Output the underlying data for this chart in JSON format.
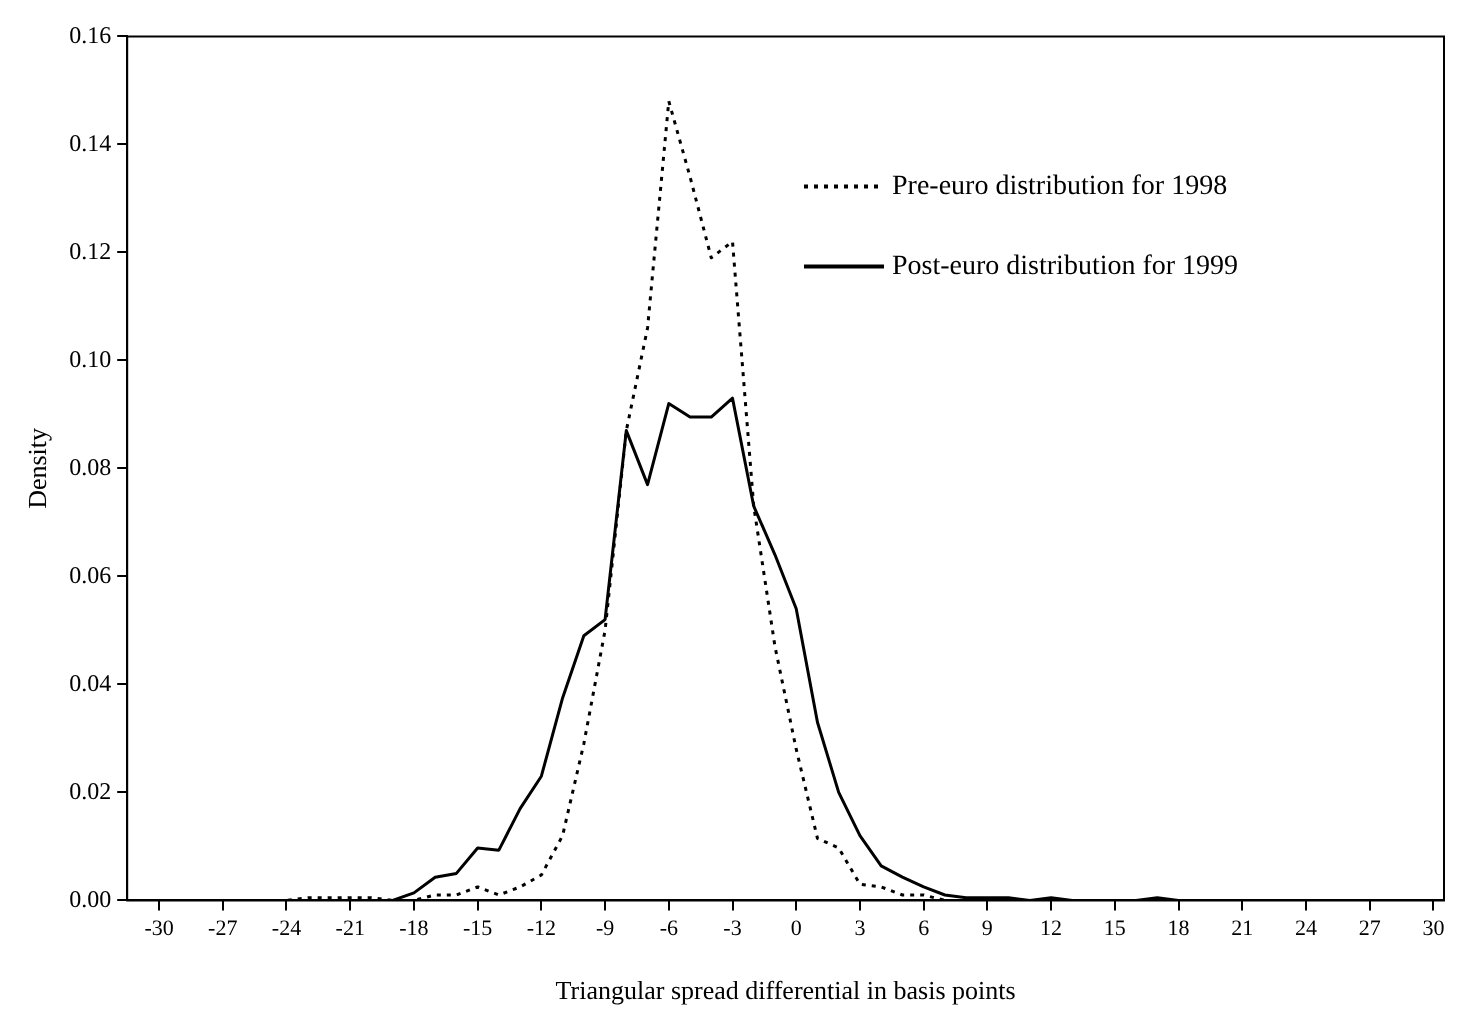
{
  "chart_data": {
    "type": "line",
    "xlabel": "Triangular spread differential in basis points",
    "ylabel": "Density",
    "x": [
      -31,
      -30,
      -29,
      -28,
      -27,
      -26,
      -25,
      -24,
      -23,
      -22,
      -21,
      -20,
      -19,
      -18,
      -17,
      -16,
      -15,
      -14,
      -13,
      -12,
      -11,
      -10,
      -9,
      -8,
      -7,
      -6,
      -5,
      -4,
      -3,
      -2,
      -1,
      0,
      1,
      2,
      3,
      4,
      5,
      6,
      7,
      8,
      9,
      10,
      11,
      12,
      13,
      14,
      15,
      16,
      17,
      18,
      19,
      20,
      21,
      22,
      23,
      24,
      25,
      26,
      27,
      28,
      29,
      30
    ],
    "series": [
      {
        "name": "Pre-euro distribution for 1998",
        "color": "#000000",
        "line_style": "dotted",
        "values": [
          0,
          0,
          0,
          0,
          0,
          0,
          0,
          0,
          0.0005,
          0.0005,
          0.0005,
          0.0005,
          0,
          0,
          0.001,
          0.001,
          0.0025,
          0.001,
          0.0025,
          0.0047,
          0.012,
          0.029,
          0.05,
          0.087,
          0.106,
          0.148,
          0.134,
          0.119,
          0.122,
          0.073,
          0.047,
          0.028,
          0.0115,
          0.0097,
          0.003,
          0.0025,
          0.001,
          0.001,
          0,
          0,
          0,
          0,
          0,
          0,
          0,
          0,
          0,
          0,
          0,
          0,
          0,
          0,
          0,
          0,
          0,
          0,
          0,
          0,
          0,
          0,
          0,
          0
        ]
      },
      {
        "name": "Post-euro distribution for 1999",
        "color": "#000000",
        "line_style": "solid",
        "values": [
          0,
          0,
          0,
          0,
          0,
          0,
          0,
          0,
          0,
          0,
          0,
          0,
          0,
          0.0014,
          0.0043,
          0.005,
          0.0097,
          0.0093,
          0.017,
          0.023,
          0.0375,
          0.049,
          0.052,
          0.087,
          0.077,
          0.092,
          0.0895,
          0.0895,
          0.093,
          0.073,
          0.064,
          0.054,
          0.033,
          0.02,
          0.012,
          0.0064,
          0.0043,
          0.0025,
          0.001,
          0.0005,
          0.0005,
          0.0005,
          0,
          0.0005,
          0,
          0,
          0,
          0,
          0.0005,
          0,
          0,
          0,
          0,
          0,
          0,
          0,
          0,
          0,
          0,
          0,
          0,
          0
        ]
      }
    ],
    "xlim": [
      -31.5,
      30.5
    ],
    "xticks": [
      -30,
      -27,
      -24,
      -21,
      -18,
      -15,
      -12,
      -9,
      -6,
      -3,
      0,
      3,
      6,
      9,
      12,
      15,
      18,
      21,
      24,
      27,
      30
    ],
    "ylim": [
      0,
      0.16
    ],
    "yticks": [
      {
        "value": 0,
        "label": "0.00"
      },
      {
        "value": 0.02,
        "label": "0.02"
      },
      {
        "value": 0.04,
        "label": "0.04"
      },
      {
        "value": 0.06,
        "label": "0.06"
      },
      {
        "value": 0.08,
        "label": "0.08"
      },
      {
        "value": 0.1,
        "label": "0.10"
      },
      {
        "value": 0.12,
        "label": "0.12"
      },
      {
        "value": 0.14,
        "label": "0.14"
      },
      {
        "value": 0.16,
        "label": "0.16"
      }
    ],
    "grid": false,
    "legend": "top right",
    "marker": "none"
  }
}
